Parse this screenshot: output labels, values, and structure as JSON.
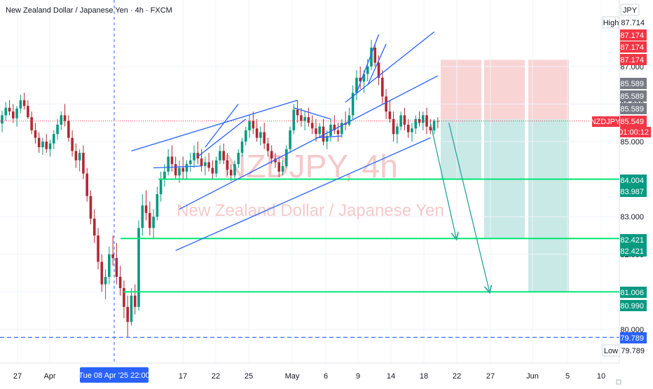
{
  "chart_data": {
    "type": "candlestick",
    "title": "New Zealand Dollar / Japanese Yen · 4h · FXCM",
    "watermark": {
      "symbol": "NZDJPY, 4h",
      "name": "New Zealand Dollar / Japanese Yen"
    },
    "currency_label": "JPY",
    "symbol_badge": "NZDJPY",
    "countdown": "01:00:12",
    "crosshair_date_label": "Tue 08 Apr '25   22:00",
    "ylim": [
      79.5,
      88.0
    ],
    "y_ticks": [
      "80.000",
      "81.000",
      "82.000",
      "83.000",
      "84.000",
      "85.000",
      "86.000",
      "87.000"
    ],
    "x_ticks": [
      "27",
      "Apr",
      "17",
      "22",
      "25",
      "May",
      "6",
      "9",
      "14",
      "18",
      "22",
      "27",
      "Jun",
      "5",
      "10"
    ],
    "ohlc": [
      [
        85.48,
        85.82,
        85.25,
        85.7
      ],
      [
        85.7,
        86.05,
        85.55,
        85.9
      ],
      [
        85.9,
        86.1,
        85.7,
        85.8
      ],
      [
        85.8,
        86.0,
        85.5,
        85.62
      ],
      [
        85.62,
        85.95,
        85.4,
        85.88
      ],
      [
        85.88,
        86.25,
        85.75,
        86.1
      ],
      [
        86.1,
        86.3,
        85.85,
        85.95
      ],
      [
        85.95,
        86.1,
        85.6,
        85.65
      ],
      [
        85.65,
        85.8,
        85.2,
        85.3
      ],
      [
        85.3,
        85.5,
        84.95,
        85.1
      ],
      [
        85.1,
        85.25,
        84.7,
        84.85
      ],
      [
        84.85,
        85.1,
        84.65,
        85.0
      ],
      [
        85.0,
        85.2,
        84.7,
        84.8
      ],
      [
        84.8,
        85.05,
        84.6,
        84.95
      ],
      [
        84.95,
        85.3,
        84.8,
        85.2
      ],
      [
        85.2,
        85.6,
        85.05,
        85.45
      ],
      [
        85.45,
        85.8,
        85.3,
        85.7
      ],
      [
        85.7,
        86.0,
        85.4,
        85.55
      ],
      [
        85.55,
        85.7,
        85.0,
        85.1
      ],
      [
        85.1,
        85.3,
        84.6,
        84.75
      ],
      [
        84.75,
        84.95,
        84.3,
        84.5
      ],
      [
        84.5,
        84.8,
        84.2,
        84.7
      ],
      [
        84.7,
        84.9,
        84.0,
        84.15
      ],
      [
        84.15,
        84.3,
        83.4,
        83.55
      ],
      [
        83.55,
        83.7,
        82.8,
        82.95
      ],
      [
        82.95,
        83.2,
        82.3,
        82.5
      ],
      [
        82.5,
        82.7,
        81.6,
        81.8
      ],
      [
        81.8,
        82.0,
        81.0,
        81.2
      ],
      [
        81.2,
        81.6,
        80.8,
        81.4
      ],
      [
        81.4,
        82.2,
        81.2,
        82.0
      ],
      [
        82.0,
        82.5,
        81.7,
        81.9
      ],
      [
        81.9,
        82.3,
        81.2,
        81.4
      ],
      [
        81.4,
        81.7,
        80.9,
        81.1
      ],
      [
        81.1,
        81.3,
        80.3,
        80.6
      ],
      [
        80.6,
        80.9,
        79.8,
        80.2
      ],
      [
        80.2,
        81.1,
        80.1,
        80.9
      ],
      [
        80.9,
        81.2,
        80.4,
        80.6
      ],
      [
        80.6,
        82.9,
        80.5,
        82.7
      ],
      [
        82.7,
        83.6,
        82.5,
        83.3
      ],
      [
        83.3,
        83.7,
        82.9,
        83.1
      ],
      [
        83.1,
        83.4,
        82.5,
        82.7
      ],
      [
        82.7,
        83.2,
        82.4,
        83.0
      ],
      [
        83.0,
        83.8,
        82.9,
        83.6
      ],
      [
        83.6,
        84.2,
        83.4,
        84.0
      ],
      [
        84.0,
        84.4,
        83.8,
        84.2
      ],
      [
        84.2,
        84.8,
        84.1,
        84.6
      ],
      [
        84.6,
        84.9,
        84.2,
        84.4
      ],
      [
        84.4,
        84.6,
        84.0,
        84.1
      ],
      [
        84.1,
        84.5,
        83.9,
        84.3
      ],
      [
        84.3,
        84.6,
        84.0,
        84.2
      ],
      [
        84.2,
        84.5,
        84.0,
        84.4
      ],
      [
        84.4,
        84.7,
        84.2,
        84.5
      ],
      [
        84.5,
        84.9,
        84.3,
        84.7
      ],
      [
        84.7,
        85.0,
        84.4,
        84.55
      ],
      [
        84.55,
        84.8,
        84.2,
        84.35
      ],
      [
        84.35,
        84.6,
        84.1,
        84.45
      ],
      [
        84.45,
        84.7,
        84.2,
        84.3
      ],
      [
        84.3,
        84.5,
        84.0,
        84.15
      ],
      [
        84.15,
        84.6,
        84.05,
        84.5
      ],
      [
        84.5,
        84.9,
        84.4,
        84.75
      ],
      [
        84.75,
        84.95,
        84.4,
        84.5
      ],
      [
        84.5,
        84.7,
        84.1,
        84.25
      ],
      [
        84.25,
        84.4,
        83.95,
        84.1
      ],
      [
        84.1,
        84.5,
        84.0,
        84.4
      ],
      [
        84.4,
        84.8,
        84.3,
        84.7
      ],
      [
        84.7,
        85.1,
        84.6,
        85.0
      ],
      [
        85.0,
        85.4,
        84.9,
        85.3
      ],
      [
        85.3,
        85.7,
        85.1,
        85.55
      ],
      [
        85.55,
        85.8,
        85.2,
        85.35
      ],
      [
        85.35,
        85.6,
        85.0,
        85.1
      ],
      [
        85.1,
        85.4,
        84.9,
        85.25
      ],
      [
        85.25,
        85.5,
        84.8,
        84.95
      ],
      [
        84.95,
        85.1,
        84.6,
        84.75
      ],
      [
        84.75,
        84.9,
        84.4,
        84.55
      ],
      [
        84.55,
        84.7,
        84.3,
        84.45
      ],
      [
        84.45,
        84.6,
        84.05,
        84.2
      ],
      [
        84.2,
        84.5,
        84.1,
        84.35
      ],
      [
        84.35,
        84.9,
        84.3,
        84.8
      ],
      [
        84.8,
        85.4,
        84.7,
        85.3
      ],
      [
        85.3,
        86.0,
        85.2,
        85.85
      ],
      [
        85.85,
        86.1,
        85.5,
        85.7
      ],
      [
        85.7,
        85.9,
        85.4,
        85.55
      ],
      [
        85.55,
        85.8,
        85.3,
        85.65
      ],
      [
        85.65,
        85.9,
        85.4,
        85.5
      ],
      [
        85.5,
        85.7,
        85.2,
        85.35
      ],
      [
        85.35,
        85.6,
        85.0,
        85.2
      ],
      [
        85.2,
        85.5,
        85.1,
        85.4
      ],
      [
        85.4,
        85.6,
        84.9,
        85.0
      ],
      [
        85.0,
        85.3,
        84.8,
        85.15
      ],
      [
        85.15,
        85.6,
        85.0,
        85.45
      ],
      [
        85.45,
        85.7,
        85.2,
        85.3
      ],
      [
        85.3,
        85.5,
        85.0,
        85.2
      ],
      [
        85.2,
        85.6,
        85.1,
        85.5
      ],
      [
        85.5,
        85.8,
        85.3,
        85.45
      ],
      [
        85.45,
        85.9,
        85.4,
        85.7
      ],
      [
        85.7,
        86.5,
        85.6,
        86.3
      ],
      [
        86.3,
        86.9,
        86.1,
        86.7
      ],
      [
        86.7,
        87.0,
        86.4,
        86.6
      ],
      [
        86.6,
        86.9,
        86.3,
        86.8
      ],
      [
        86.8,
        87.2,
        86.6,
        87.0
      ],
      [
        87.0,
        87.71,
        86.9,
        87.5
      ],
      [
        87.5,
        87.6,
        87.0,
        87.1
      ],
      [
        87.1,
        87.3,
        86.5,
        86.7
      ],
      [
        86.7,
        86.9,
        86.0,
        86.2
      ],
      [
        86.2,
        86.4,
        85.6,
        85.8
      ],
      [
        85.8,
        86.1,
        85.5,
        85.6
      ],
      [
        85.6,
        85.8,
        85.0,
        85.2
      ],
      [
        85.2,
        85.5,
        84.95,
        85.4
      ],
      [
        85.4,
        85.8,
        85.3,
        85.7
      ],
      [
        85.7,
        85.9,
        85.3,
        85.45
      ],
      [
        85.45,
        85.6,
        85.1,
        85.25
      ],
      [
        85.25,
        85.5,
        85.0,
        85.35
      ],
      [
        85.35,
        85.7,
        85.2,
        85.6
      ],
      [
        85.6,
        85.8,
        85.4,
        85.5
      ],
      [
        85.5,
        85.8,
        85.3,
        85.7
      ],
      [
        85.7,
        85.9,
        85.2,
        85.4
      ],
      [
        85.4,
        85.6,
        85.2,
        85.3
      ],
      [
        85.3,
        85.6,
        85.2,
        85.55
      ],
      [
        85.55,
        85.65,
        85.35,
        85.549
      ]
    ],
    "horizontal_levels": [
      84.0,
      82.42,
      81.0
    ],
    "session_low_line": 79.789,
    "trend_lines": [
      {
        "from": [
          35,
          84.75
        ],
        "to": [
          80,
          86.1
        ]
      },
      {
        "from": [
          48,
          83.2
        ],
        "to": [
          118,
          86.75
        ]
      },
      {
        "from": [
          93,
          86.05
        ],
        "to": [
          117,
          87.92
        ]
      },
      {
        "from": [
          47,
          82.1
        ],
        "to": [
          116,
          85.1
        ]
      },
      {
        "from": [
          41,
          84.3
        ],
        "to": [
          54,
          84.35
        ]
      },
      {
        "from": [
          53,
          84.6
        ],
        "to": [
          66,
          85.6
        ]
      },
      {
        "from": [
          55,
          84.85
        ],
        "to": [
          64,
          86.0
        ]
      },
      {
        "from": [
          79,
          85.9
        ],
        "to": [
          89,
          85.6
        ]
      },
      {
        "from": [
          85,
          85.1
        ],
        "to": [
          92,
          85.15
        ]
      },
      {
        "from": [
          96,
          86.3
        ],
        "to": [
          102,
          87.85
        ]
      },
      {
        "from": [
          99,
          86.5
        ],
        "to": [
          104,
          87.6
        ]
      }
    ],
    "trade_zones": [
      {
        "x": [
          115,
          126
        ],
        "stop": 87.174,
        "entry": 85.589,
        "target": 84.004
      },
      {
        "x": [
          126,
          137
        ],
        "stop": 87.174,
        "entry": 85.589,
        "target": 82.421
      },
      {
        "x": [
          137,
          148
        ],
        "stop": 87.174,
        "entry": 85.589,
        "target": 81.006
      }
    ],
    "arrows": [
      {
        "from": [
          116,
          85.5
        ],
        "to": [
          123,
          82.42
        ]
      },
      {
        "from": [
          121,
          85.5
        ],
        "to": [
          132,
          81.0
        ]
      }
    ],
    "price_labels": [
      {
        "text": "87.714",
        "kind": "high",
        "tag": "High"
      },
      {
        "text": "87.174",
        "kind": "red"
      },
      {
        "text": "87.174",
        "kind": "red"
      },
      {
        "text": "87.174",
        "kind": "red"
      },
      {
        "text": "85.589",
        "kind": "gray"
      },
      {
        "text": "85.589",
        "kind": "gray"
      },
      {
        "text": "85.589",
        "kind": "gray"
      },
      {
        "text": "85.549",
        "kind": "current"
      },
      {
        "text": "84.004",
        "kind": "green"
      },
      {
        "text": "83.987",
        "kind": "green"
      },
      {
        "text": "82.421",
        "kind": "green"
      },
      {
        "text": "82.421",
        "kind": "green"
      },
      {
        "text": "81.006",
        "kind": "green"
      },
      {
        "text": "80.990",
        "kind": "green"
      },
      {
        "text": "79.789",
        "kind": "blue"
      },
      {
        "text": "79.789",
        "kind": "low",
        "tag": "Low"
      }
    ],
    "colors": {
      "up": "#089981",
      "down": "#b22833",
      "trend": "#2962ff",
      "level": "#00e676",
      "session": "#2962ff",
      "stop_zone": "#f7c6c7",
      "target_zone": "#b2dfdb",
      "arrow": "#26a69a",
      "current": "#f23645",
      "red_tag": "#f23645",
      "gray_tag": "#787b86",
      "green_tag": "#089981",
      "blue_tag": "#2962ff"
    }
  }
}
